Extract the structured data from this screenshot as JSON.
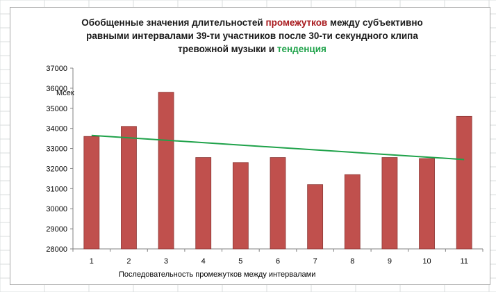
{
  "chart_data": {
    "type": "bar",
    "title_lines": [
      [
        {
          "text": "Обобщенные значения длительностей ",
          "color": "#1a1a1a"
        },
        {
          "text": "промежутков",
          "color": "#a8191d"
        },
        {
          "text": " между субъективно",
          "color": "#1a1a1a"
        }
      ],
      [
        {
          "text": "равными интервалами 39-ти участников после 30-ти секундного клипа",
          "color": "#1a1a1a"
        }
      ],
      [
        {
          "text": "тревожной музыки и ",
          "color": "#1a1a1a"
        },
        {
          "text": "тенденция",
          "color": "#1fa24a"
        }
      ]
    ],
    "categories": [
      "1",
      "2",
      "3",
      "4",
      "5",
      "6",
      "7",
      "8",
      "9",
      "10",
      "11"
    ],
    "series": [
      {
        "values": [
          33600,
          34100,
          35800,
          32550,
          32300,
          32550,
          31200,
          31700,
          32550,
          32500,
          34600
        ],
        "color": "#c0504d"
      }
    ],
    "trendline": {
      "type": "linear",
      "start": 33650,
      "end": 32450,
      "color": "#1fa24a"
    },
    "ylabel": "Мсек",
    "xlabel": "Последовательность  промежутков  между интервалами",
    "ylim": [
      28000,
      37000
    ],
    "yticks": [
      28000,
      29000,
      30000,
      31000,
      32000,
      33000,
      34000,
      35000,
      36000,
      37000
    ],
    "grid": false,
    "legend": "none"
  }
}
